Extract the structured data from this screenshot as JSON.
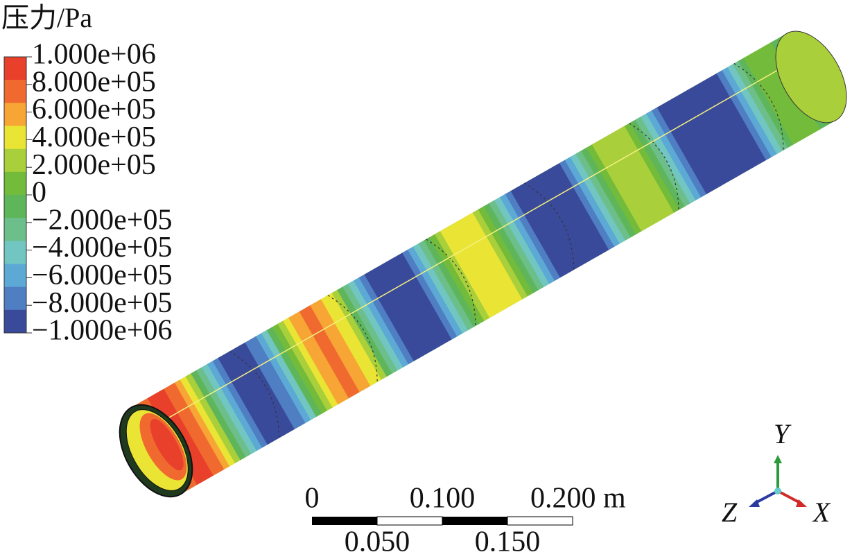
{
  "legend": {
    "title": "压力/Pa",
    "labels": [
      "1.000e+06",
      "8.000e+05",
      "6.000e+05",
      "4.000e+05",
      "2.000e+05",
      "0",
      "−2.000e+05",
      "−4.000e+05",
      "−6.000e+05",
      "−8.000e+05",
      "−1.000e+06"
    ],
    "colors": [
      "#e8402a",
      "#f06a30",
      "#f7a535",
      "#eae534",
      "#a9cf3a",
      "#73bb3a",
      "#5fb65a",
      "#6cbf8a",
      "#72c6c2",
      "#5da9d6",
      "#4f7ec3",
      "#3a4a9a"
    ]
  },
  "scale_bar": {
    "labels_top": [
      "0",
      "0.100",
      "0.200 m"
    ],
    "labels_bottom": [
      "0.050",
      "0.150"
    ]
  },
  "axes": {
    "y": "Y",
    "z": "Z",
    "x": "X"
  }
}
